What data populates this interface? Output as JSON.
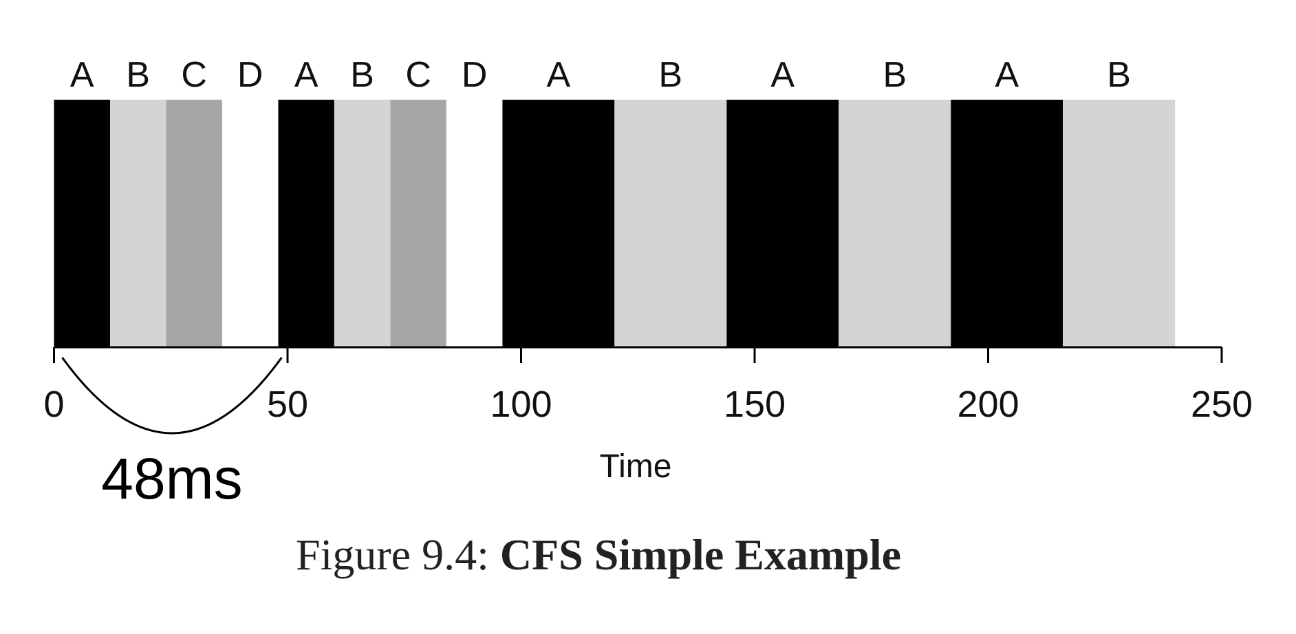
{
  "chart_data": {
    "type": "timeline",
    "x_label": "Time",
    "xlim": [
      0,
      250
    ],
    "xticks": [
      0,
      50,
      100,
      150,
      200,
      250
    ],
    "series": [
      {
        "name": "A",
        "color": "#000000",
        "intervals": [
          [
            0,
            12
          ],
          [
            48,
            60
          ],
          [
            96,
            120
          ],
          [
            144,
            168
          ],
          [
            192,
            216
          ]
        ]
      },
      {
        "name": "B",
        "color": "#d4d4d4",
        "intervals": [
          [
            12,
            24
          ],
          [
            60,
            72
          ],
          [
            120,
            144
          ],
          [
            168,
            192
          ],
          [
            216,
            240
          ]
        ]
      },
      {
        "name": "C",
        "color": "#a6a6a6",
        "intervals": [
          [
            24,
            36
          ],
          [
            72,
            84
          ]
        ]
      },
      {
        "name": "D",
        "color": "#ffffff",
        "intervals": [
          [
            36,
            48
          ],
          [
            84,
            96
          ]
        ]
      }
    ],
    "annotation": {
      "label": "48ms",
      "span": [
        0,
        48
      ]
    },
    "caption_label": "Figure 9.4:",
    "caption_title": "CFS Simple Example"
  }
}
